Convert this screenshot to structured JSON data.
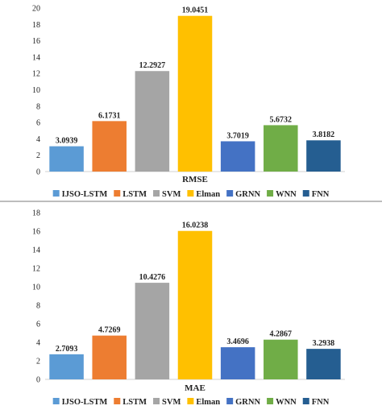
{
  "chart_data": [
    {
      "type": "bar",
      "xlabel": "RMSE",
      "ylim": [
        0,
        20
      ],
      "yticks": [
        0,
        2,
        4,
        6,
        8,
        10,
        12,
        14,
        16,
        18,
        20
      ],
      "categories": [
        "IJSO-LSTM",
        "LSTM",
        "SVM",
        "Elman",
        "GRNN",
        "WNN",
        "FNN"
      ],
      "values": [
        3.0939,
        6.1731,
        12.2927,
        19.0451,
        3.7019,
        5.6732,
        3.8182
      ],
      "value_labels": [
        "3.0939",
        "6.1731",
        "12.2927",
        "19.0451",
        "3.7019",
        "5.6732",
        "3.8182"
      ],
      "colors": [
        "#5b9bd5",
        "#ed7d31",
        "#a5a5a5",
        "#ffc000",
        "#4472c4",
        "#70ad47",
        "#255e91"
      ],
      "legend": "bottom",
      "grid": false
    },
    {
      "type": "bar",
      "xlabel": "MAE",
      "ylim": [
        0,
        18
      ],
      "yticks": [
        0,
        2,
        4,
        6,
        8,
        10,
        12,
        14,
        16,
        18
      ],
      "categories": [
        "IJSO-LSTM",
        "LSTM",
        "SVM",
        "Elman",
        "GRNN",
        "WNN",
        "FNN"
      ],
      "values": [
        2.7093,
        4.7269,
        10.4276,
        16.0238,
        3.4696,
        4.2867,
        3.2938
      ],
      "value_labels": [
        "2.7093",
        "4.7269",
        "10.4276",
        "16.0238",
        "3.4696",
        "4.2867",
        "3.2938"
      ],
      "colors": [
        "#5b9bd5",
        "#ed7d31",
        "#a5a5a5",
        "#ffc000",
        "#4472c4",
        "#70ad47",
        "#255e91"
      ],
      "legend": "bottom",
      "grid": false
    }
  ]
}
